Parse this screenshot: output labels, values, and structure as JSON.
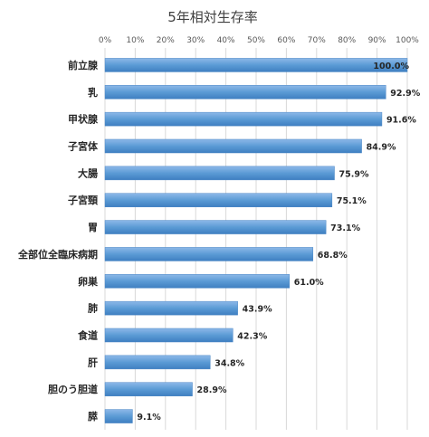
{
  "chart_data": {
    "type": "bar",
    "orientation": "horizontal",
    "title": "5年相対生存率",
    "categories": [
      "前立腺",
      "乳",
      "甲状腺",
      "子宮体",
      "大腸",
      "子宮頸",
      "胃",
      "全部位全臨床病期",
      "卵巣",
      "肺",
      "食道",
      "肝",
      "胆のう胆道",
      "膵"
    ],
    "values": [
      100.0,
      92.9,
      91.6,
      84.9,
      75.9,
      75.1,
      73.1,
      68.8,
      61.0,
      43.9,
      42.3,
      34.8,
      28.9,
      9.1
    ],
    "value_labels": [
      "100.0%",
      "92.9%",
      "91.6%",
      "84.9%",
      "75.9%",
      "75.1%",
      "73.1%",
      "68.8%",
      "61.0%",
      "43.9%",
      "42.3%",
      "34.8%",
      "28.9%",
      "9.1%"
    ],
    "xlim": [
      0,
      100
    ],
    "xticks": [
      "0%",
      "10%",
      "20%",
      "30%",
      "40%",
      "50%",
      "60%",
      "70%",
      "80%",
      "90%",
      "100%"
    ],
    "axis_position": "top",
    "grid": true,
    "colors": {
      "bar": "#5b9bd5",
      "bar_light": "#8db8e8",
      "bar_dark": "#3f7fc1",
      "grid": "#d9d9d9",
      "text": "#262626"
    }
  }
}
